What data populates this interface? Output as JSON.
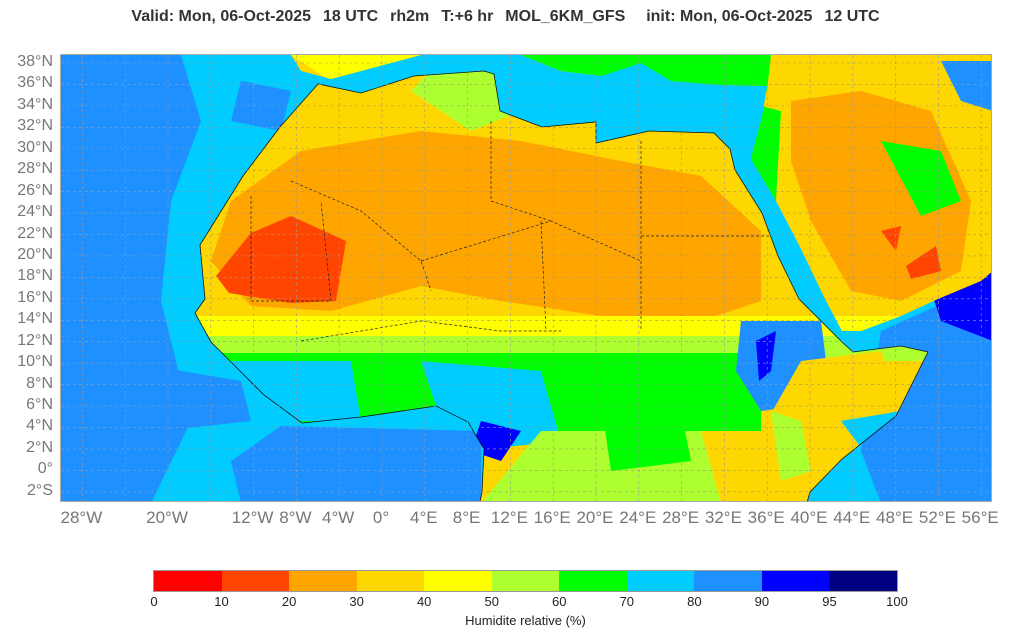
{
  "header": {
    "valid": "Valid: Mon, 06-Oct-2025",
    "valid_hour": "18 UTC",
    "variable": "rh2m",
    "lead": "T:+6 hr",
    "model": "MOL_6KM_GFS",
    "init": "init: Mon, 06-Oct-2025",
    "init_hour": "12 UTC"
  },
  "map": {
    "region": "North Africa and Arabia",
    "lat_labels": [
      "38°N",
      "36°N",
      "34°N",
      "32°N",
      "30°N",
      "28°N",
      "26°N",
      "24°N",
      "22°N",
      "20°N",
      "18°N",
      "16°N",
      "14°N",
      "12°N",
      "10°N",
      "8°N",
      "6°N",
      "4°N",
      "2°N",
      "0°",
      "2°S"
    ],
    "lat_values": [
      38,
      36,
      34,
      32,
      30,
      28,
      26,
      24,
      22,
      20,
      18,
      16,
      14,
      12,
      10,
      8,
      6,
      4,
      2,
      0,
      -2
    ],
    "lon_labels": [
      "28°W",
      "20°W",
      "12°W",
      "8°W",
      "4°W",
      "0°",
      "4°E",
      "8°E",
      "12°E",
      "16°E",
      "20°E",
      "24°E",
      "28°E",
      "32°E",
      "36°E",
      "40°E",
      "44°E",
      "48°E",
      "52°E",
      "56°E"
    ],
    "lon_values": [
      -28,
      -20,
      -12,
      -8,
      -4,
      0,
      4,
      8,
      12,
      16,
      20,
      24,
      28,
      32,
      36,
      40,
      44,
      48,
      52,
      56
    ],
    "grid": true
  },
  "colorbar": {
    "label": "Humidite relative (%)",
    "ticks": [
      "0",
      "10",
      "20",
      "30",
      "40",
      "50",
      "60",
      "70",
      "80",
      "90",
      "95",
      "100"
    ],
    "colors": [
      "#ff0000",
      "#ff4500",
      "#ffa500",
      "#ffd700",
      "#ffff00",
      "#adff2f",
      "#00ff00",
      "#00ccff",
      "#1e90ff",
      "#0000ff",
      "#000080"
    ]
  }
}
